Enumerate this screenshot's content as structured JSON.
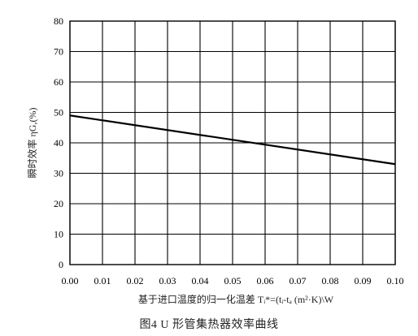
{
  "chart_data": {
    "type": "line",
    "title": "",
    "xlabel": "基于进口温度的归一化温差 Tᵢ*=(tᵢ-tₐ     (m²·K)\\W",
    "ylabel": "瞬时效率 ηG,(%)",
    "xlim": [
      0.0,
      0.1
    ],
    "ylim": [
      0,
      80
    ],
    "x_ticks": [
      "0.00",
      "0.01",
      "0.02",
      "0.03",
      "0.04",
      "0.05",
      "0.06",
      "0.07",
      "0.08",
      "0.09",
      "0.10"
    ],
    "y_ticks": [
      "0",
      "10",
      "20",
      "30",
      "40",
      "50",
      "60",
      "70",
      "80"
    ],
    "grid": true,
    "series": [
      {
        "x": [
          0.0,
          0.1
        ],
        "y": [
          49.0,
          33.0
        ]
      }
    ],
    "colors": {
      "line": "#000000",
      "grid": "#000000",
      "text": "#222222"
    }
  },
  "caption": "图4   U 形管集热器效率曲线"
}
